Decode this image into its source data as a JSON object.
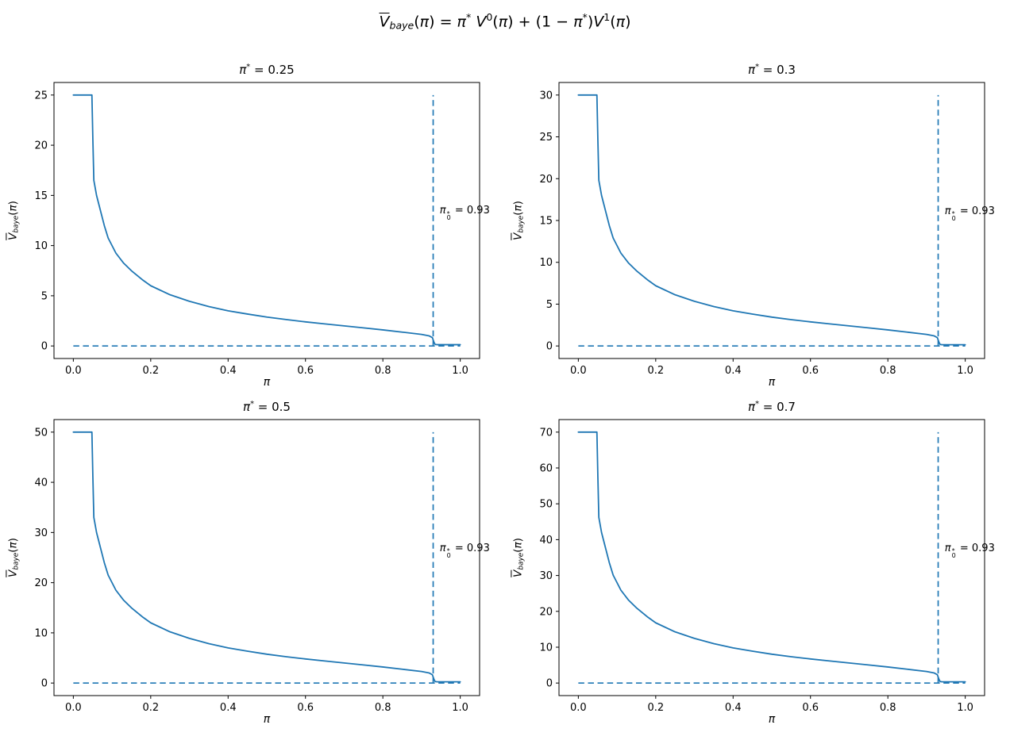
{
  "figure": {
    "suptitle": {
      "text": "V̄baye(π) = π*V⁰(π) + (1 − π*)V¹(π)",
      "parts": [
        [
          "V",
          "i ol"
        ],
        [
          "baye",
          "i sub"
        ],
        [
          "(",
          ""
        ],
        [
          "π",
          "i"
        ],
        [
          ")",
          ""
        ],
        [
          " = ",
          ""
        ],
        [
          "π",
          "i"
        ],
        [
          "*",
          "sup"
        ],
        [
          " ",
          ""
        ],
        [
          "V",
          "i"
        ],
        [
          "0",
          "sup"
        ],
        [
          "(",
          ""
        ],
        [
          "π",
          "i"
        ],
        [
          ")",
          ""
        ],
        [
          " + (1 − ",
          ""
        ],
        [
          "π",
          "i"
        ],
        [
          "*",
          "sup"
        ],
        [
          ")",
          ""
        ],
        [
          "V",
          "i"
        ],
        [
          "1",
          "sup"
        ],
        [
          "(",
          ""
        ],
        [
          "π",
          "i"
        ],
        [
          ")",
          ""
        ]
      ]
    },
    "colors": {
      "line": "#1f77b4",
      "axes": "#000000",
      "text": "#000000",
      "background": "#ffffff"
    }
  },
  "chart_data": [
    {
      "type": "line",
      "position": "top-left",
      "title": "π* = 0.25",
      "title_parts": [
        [
          "π",
          "i"
        ],
        [
          "*",
          "sup"
        ],
        [
          " = 0.25",
          ""
        ]
      ],
      "pi_star": 0.25,
      "xlabel": "π",
      "xlabel_parts": [
        [
          "π",
          "i"
        ]
      ],
      "ylabel": "V̄baye(π)",
      "ylabel_parts": [
        [
          "V",
          "i ol"
        ],
        [
          "baye",
          "i sub"
        ],
        [
          "(",
          ""
        ],
        [
          "π",
          "i"
        ],
        [
          ")",
          ""
        ]
      ],
      "xlim": [
        -0.05,
        1.05
      ],
      "ylim": [
        -1.25,
        26.25
      ],
      "xtick_labels": [
        "0.0",
        "0.2",
        "0.4",
        "0.6",
        "0.8",
        "1.0"
      ],
      "xtick_values": [
        0.0,
        0.2,
        0.4,
        0.6,
        0.8,
        1.0
      ],
      "ytick_values": [
        0,
        5,
        10,
        15,
        20,
        25
      ],
      "grid": false,
      "legend": null,
      "series": [
        {
          "name": "V̄baye(π)",
          "x": [
            0,
            0.048,
            0.0505,
            0.053,
            0.06,
            0.07,
            0.08,
            0.09,
            0.1,
            0.11,
            0.13,
            0.15,
            0.18,
            0.2,
            0.25,
            0.3,
            0.35,
            0.4,
            0.45,
            0.5,
            0.55,
            0.6,
            0.65,
            0.7,
            0.75,
            0.8,
            0.85,
            0.9,
            0.92,
            0.928,
            0.932,
            0.935,
            0.94,
            1.0
          ],
          "y": [
            25,
            25,
            20.5,
            16.5,
            15,
            13.5,
            12,
            10.75,
            10,
            9.25,
            8.25,
            7.5,
            6.55,
            6,
            5.1,
            4.45,
            3.93,
            3.5,
            3.18,
            2.88,
            2.63,
            2.4,
            2.2,
            2,
            1.8,
            1.6,
            1.38,
            1.15,
            1,
            0.83,
            0.38,
            0.15,
            0.13,
            0.13
          ]
        }
      ],
      "hline": {
        "y": 0,
        "x_start": 0,
        "x_end": 1,
        "style": "dashed"
      },
      "vline": {
        "x": 0.93,
        "y_start": 0,
        "y_end": 25,
        "style": "dashed"
      },
      "annotation": {
        "text": "π₀* = 0.93",
        "text_parts": [
          [
            "π",
            "i"
          ],
          [
            "*|0",
            "stack"
          ],
          [
            " = 0.93",
            ""
          ]
        ],
        "x": 0.947,
        "y": 13.3
      }
    },
    {
      "type": "line",
      "position": "top-right",
      "title": "π* = 0.3",
      "title_parts": [
        [
          "π",
          "i"
        ],
        [
          "*",
          "sup"
        ],
        [
          " = 0.3",
          ""
        ]
      ],
      "pi_star": 0.3,
      "xlabel": "π",
      "xlabel_parts": [
        [
          "π",
          "i"
        ]
      ],
      "ylabel": "V̄baye(π)",
      "ylabel_parts": [
        [
          "V",
          "i ol"
        ],
        [
          "baye",
          "i sub"
        ],
        [
          "(",
          ""
        ],
        [
          "π",
          "i"
        ],
        [
          ")",
          ""
        ]
      ],
      "xlim": [
        -0.05,
        1.05
      ],
      "ylim": [
        -1.5,
        31.5
      ],
      "xtick_labels": [
        "0.0",
        "0.2",
        "0.4",
        "0.6",
        "0.8",
        "1.0"
      ],
      "xtick_values": [
        0.0,
        0.2,
        0.4,
        0.6,
        0.8,
        1.0
      ],
      "ytick_values": [
        0,
        5,
        10,
        15,
        20,
        25,
        30
      ],
      "grid": false,
      "legend": null,
      "series": [
        {
          "name": "V̄baye(π)",
          "x": [
            0,
            0.048,
            0.0505,
            0.053,
            0.06,
            0.07,
            0.08,
            0.09,
            0.1,
            0.11,
            0.13,
            0.15,
            0.18,
            0.2,
            0.25,
            0.3,
            0.35,
            0.4,
            0.45,
            0.5,
            0.55,
            0.6,
            0.65,
            0.7,
            0.75,
            0.8,
            0.85,
            0.9,
            0.92,
            0.928,
            0.932,
            0.935,
            0.94,
            1.0
          ],
          "y": [
            30,
            30,
            24.6,
            19.8,
            18,
            16.2,
            14.4,
            12.9,
            12,
            11.1,
            9.9,
            9,
            7.86,
            7.2,
            6.12,
            5.34,
            4.71,
            4.2,
            3.81,
            3.45,
            3.15,
            2.88,
            2.64,
            2.4,
            2.16,
            1.92,
            1.65,
            1.38,
            1.2,
            0.99,
            0.45,
            0.18,
            0.15,
            0.15
          ]
        }
      ],
      "hline": {
        "y": 0,
        "x_start": 0,
        "x_end": 1,
        "style": "dashed"
      },
      "vline": {
        "x": 0.93,
        "y_start": 0,
        "y_end": 30,
        "style": "dashed"
      },
      "annotation": {
        "text": "π₀* = 0.93",
        "text_parts": [
          [
            "π",
            "i"
          ],
          [
            "*|0",
            "stack"
          ],
          [
            " = 0.93",
            ""
          ]
        ],
        "x": 0.947,
        "y": 15.9
      }
    },
    {
      "type": "line",
      "position": "bottom-left",
      "title": "π* = 0.5",
      "title_parts": [
        [
          "π",
          "i"
        ],
        [
          "*",
          "sup"
        ],
        [
          " = 0.5",
          ""
        ]
      ],
      "pi_star": 0.5,
      "xlabel": "π",
      "xlabel_parts": [
        [
          "π",
          "i"
        ]
      ],
      "ylabel": "V̄baye(π)",
      "ylabel_parts": [
        [
          "V",
          "i ol"
        ],
        [
          "baye",
          "i sub"
        ],
        [
          "(",
          ""
        ],
        [
          "π",
          "i"
        ],
        [
          ")",
          ""
        ]
      ],
      "xlim": [
        -0.05,
        1.05
      ],
      "ylim": [
        -2.5,
        52.5
      ],
      "xtick_labels": [
        "0.0",
        "0.2",
        "0.4",
        "0.6",
        "0.8",
        "1.0"
      ],
      "xtick_values": [
        0.0,
        0.2,
        0.4,
        0.6,
        0.8,
        1.0
      ],
      "ytick_values": [
        0,
        10,
        20,
        30,
        40,
        50
      ],
      "grid": false,
      "legend": null,
      "series": [
        {
          "name": "V̄baye(π)",
          "x": [
            0,
            0.048,
            0.0505,
            0.053,
            0.06,
            0.07,
            0.08,
            0.09,
            0.1,
            0.11,
            0.13,
            0.15,
            0.18,
            0.2,
            0.25,
            0.3,
            0.35,
            0.4,
            0.45,
            0.5,
            0.55,
            0.6,
            0.65,
            0.7,
            0.75,
            0.8,
            0.85,
            0.9,
            0.92,
            0.928,
            0.932,
            0.935,
            0.94,
            1.0
          ],
          "y": [
            50,
            50,
            41,
            33,
            30,
            27,
            24,
            21.5,
            20,
            18.5,
            16.5,
            15,
            13.1,
            12,
            10.2,
            8.9,
            7.85,
            7,
            6.35,
            5.75,
            5.25,
            4.8,
            4.4,
            4,
            3.6,
            3.2,
            2.75,
            2.3,
            2,
            1.65,
            0.75,
            0.3,
            0.25,
            0.25
          ]
        }
      ],
      "hline": {
        "y": 0,
        "x_start": 0,
        "x_end": 1,
        "style": "dashed"
      },
      "vline": {
        "x": 0.93,
        "y_start": 0,
        "y_end": 50,
        "style": "dashed"
      },
      "annotation": {
        "text": "π₀* = 0.93",
        "text_parts": [
          [
            "π",
            "i"
          ],
          [
            "*|0",
            "stack"
          ],
          [
            " = 0.93",
            ""
          ]
        ],
        "x": 0.947,
        "y": 26.5
      }
    },
    {
      "type": "line",
      "position": "bottom-right",
      "title": "π* = 0.7",
      "title_parts": [
        [
          "π",
          "i"
        ],
        [
          "*",
          "sup"
        ],
        [
          " = 0.7",
          ""
        ]
      ],
      "pi_star": 0.7,
      "xlabel": "π",
      "xlabel_parts": [
        [
          "π",
          "i"
        ]
      ],
      "ylabel": "V̄baye(π)",
      "ylabel_parts": [
        [
          "V",
          "i ol"
        ],
        [
          "baye",
          "i sub"
        ],
        [
          "(",
          ""
        ],
        [
          "π",
          "i"
        ],
        [
          ")",
          ""
        ]
      ],
      "xlim": [
        -0.05,
        1.05
      ],
      "ylim": [
        -3.5,
        73.5
      ],
      "xtick_labels": [
        "0.0",
        "0.2",
        "0.4",
        "0.6",
        "0.8",
        "1.0"
      ],
      "xtick_values": [
        0.0,
        0.2,
        0.4,
        0.6,
        0.8,
        1.0
      ],
      "ytick_values": [
        0,
        10,
        20,
        30,
        40,
        50,
        60,
        70
      ],
      "grid": false,
      "legend": null,
      "series": [
        {
          "name": "V̄baye(π)",
          "x": [
            0,
            0.048,
            0.0505,
            0.053,
            0.06,
            0.07,
            0.08,
            0.09,
            0.1,
            0.11,
            0.13,
            0.15,
            0.18,
            0.2,
            0.25,
            0.3,
            0.35,
            0.4,
            0.45,
            0.5,
            0.55,
            0.6,
            0.65,
            0.7,
            0.75,
            0.8,
            0.85,
            0.9,
            0.92,
            0.928,
            0.932,
            0.935,
            0.94,
            1.0
          ],
          "y": [
            70,
            70,
            57.4,
            46.2,
            42,
            37.8,
            33.6,
            30.1,
            28,
            25.9,
            23.1,
            21,
            18.34,
            16.8,
            14.28,
            12.46,
            10.99,
            9.8,
            8.89,
            8.05,
            7.35,
            6.72,
            6.16,
            5.6,
            5.04,
            4.48,
            3.85,
            3.22,
            2.8,
            2.31,
            1.05,
            0.42,
            0.35,
            0.35
          ]
        }
      ],
      "hline": {
        "y": 0,
        "x_start": 0,
        "x_end": 1,
        "style": "dashed"
      },
      "vline": {
        "x": 0.93,
        "y_start": 0,
        "y_end": 70,
        "style": "dashed"
      },
      "annotation": {
        "text": "π₀* = 0.93",
        "text_parts": [
          [
            "π",
            "i"
          ],
          [
            "*|0",
            "stack"
          ],
          [
            " = 0.93",
            ""
          ]
        ],
        "x": 0.947,
        "y": 37.1
      }
    }
  ]
}
